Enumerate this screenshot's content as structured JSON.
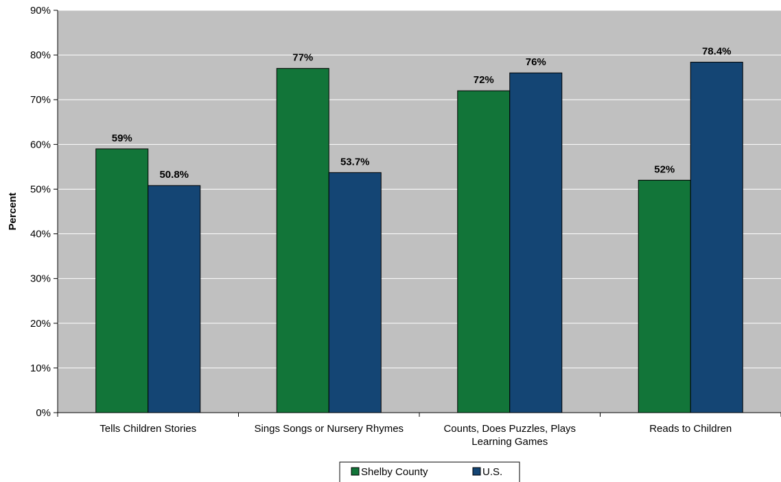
{
  "chart_data": {
    "type": "bar",
    "ylabel": "Percent",
    "xlabel": "",
    "ylim": [
      0,
      90
    ],
    "y_tick_step": 10,
    "y_tick_format": "percent",
    "grid": "horizontal",
    "plot_background": "#c0c0c0",
    "legend_position": "bottom",
    "categories": [
      [
        "Tells Children Stories"
      ],
      [
        "Sings Songs or Nursery Rhymes"
      ],
      [
        "Counts, Does Puzzles, Plays",
        "Learning Games"
      ],
      [
        "Reads to Children"
      ]
    ],
    "series": [
      {
        "name": "Shelby County",
        "color": "#127539",
        "values": [
          59,
          77,
          72,
          52
        ],
        "labels": [
          "59%",
          "77%",
          "72%",
          "52%"
        ]
      },
      {
        "name": "U.S.",
        "color": "#144574",
        "values": [
          50.8,
          53.7,
          76,
          78.4
        ],
        "labels": [
          "50.8%",
          "53.7%",
          "76%",
          "78.4%"
        ]
      }
    ]
  }
}
